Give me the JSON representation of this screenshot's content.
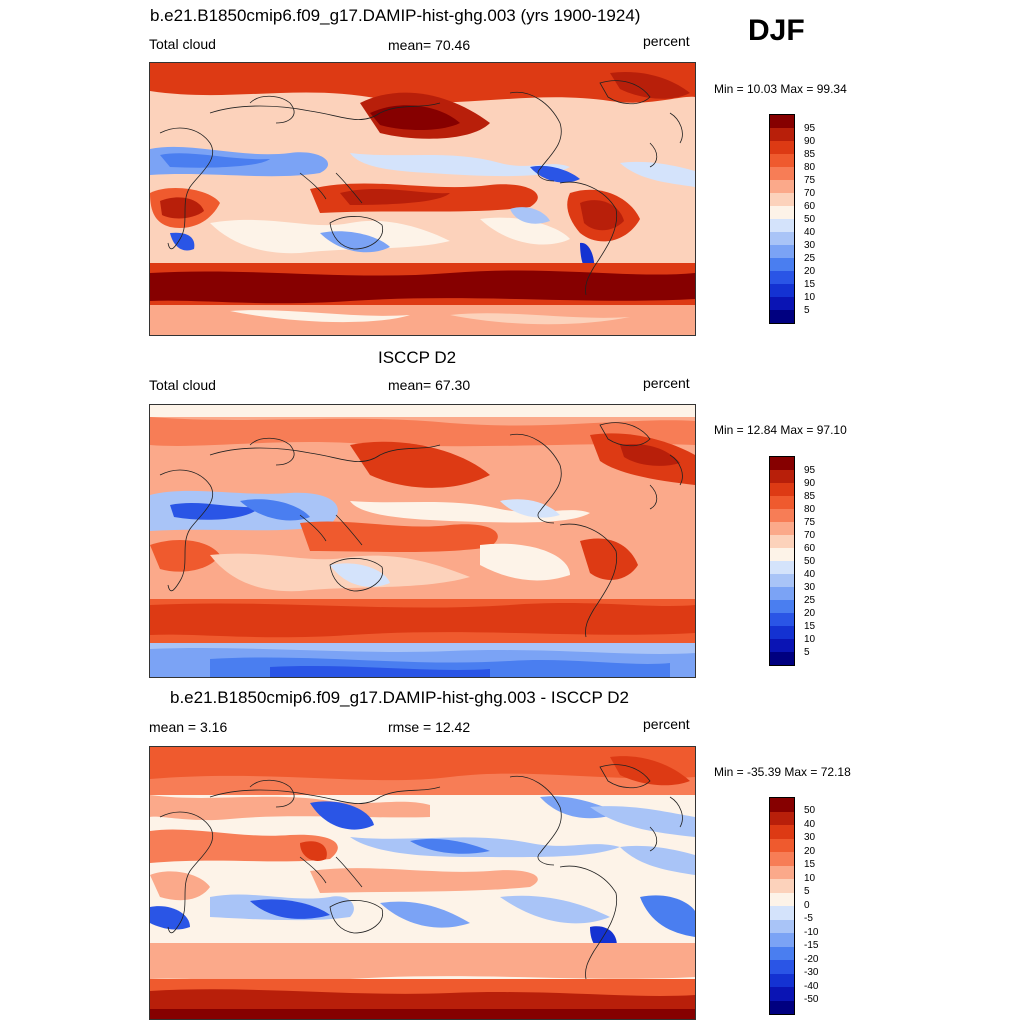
{
  "season": "DJF",
  "panels": [
    {
      "id": "model",
      "title": "b.e21.B1850cmip6.f09_g17.DAMIP-hist-ghg.003 (yrs 1900-1924)",
      "left_label": "Total cloud",
      "center_label": "mean=  70.46",
      "right_label": "percent",
      "minmax": "Min =  10.03 Max =  99.34",
      "colorbar_labels": [
        "95",
        "90",
        "85",
        "80",
        "75",
        "70",
        "60",
        "50",
        "40",
        "30",
        "25",
        "20",
        "15",
        "10",
        "5"
      ]
    },
    {
      "id": "obs",
      "title": "ISCCP D2",
      "left_label": "Total cloud",
      "center_label": "mean=  67.30",
      "right_label": "percent",
      "minmax": "Min =  12.84 Max =  97.10",
      "colorbar_labels": [
        "95",
        "90",
        "85",
        "80",
        "75",
        "70",
        "60",
        "50",
        "40",
        "30",
        "25",
        "20",
        "15",
        "10",
        "5"
      ]
    },
    {
      "id": "diff",
      "title": "b.e21.B1850cmip6.f09_g17.DAMIP-hist-ghg.003 - ISCCP D2",
      "left_label": "mean =   3.16",
      "center_label": "rmse =  12.42",
      "right_label": "percent",
      "minmax": "Min = -35.39 Max =  72.18",
      "colorbar_labels": [
        "50",
        "40",
        "30",
        "20",
        "15",
        "10",
        "5",
        "0",
        "-5",
        "-10",
        "-15",
        "-20",
        "-30",
        "-40",
        "-50"
      ]
    }
  ],
  "colors": {
    "palette": [
      "#000080",
      "#0a14b4",
      "#1432d2",
      "#2a55e6",
      "#4a7ef0",
      "#7ba3f5",
      "#a9c4f7",
      "#d4e3fb",
      "#fdf3e8",
      "#fcd2bb",
      "#fba98a",
      "#f77d56",
      "#ef5a2e",
      "#dd3a14",
      "#b81f0a",
      "#860000"
    ]
  }
}
